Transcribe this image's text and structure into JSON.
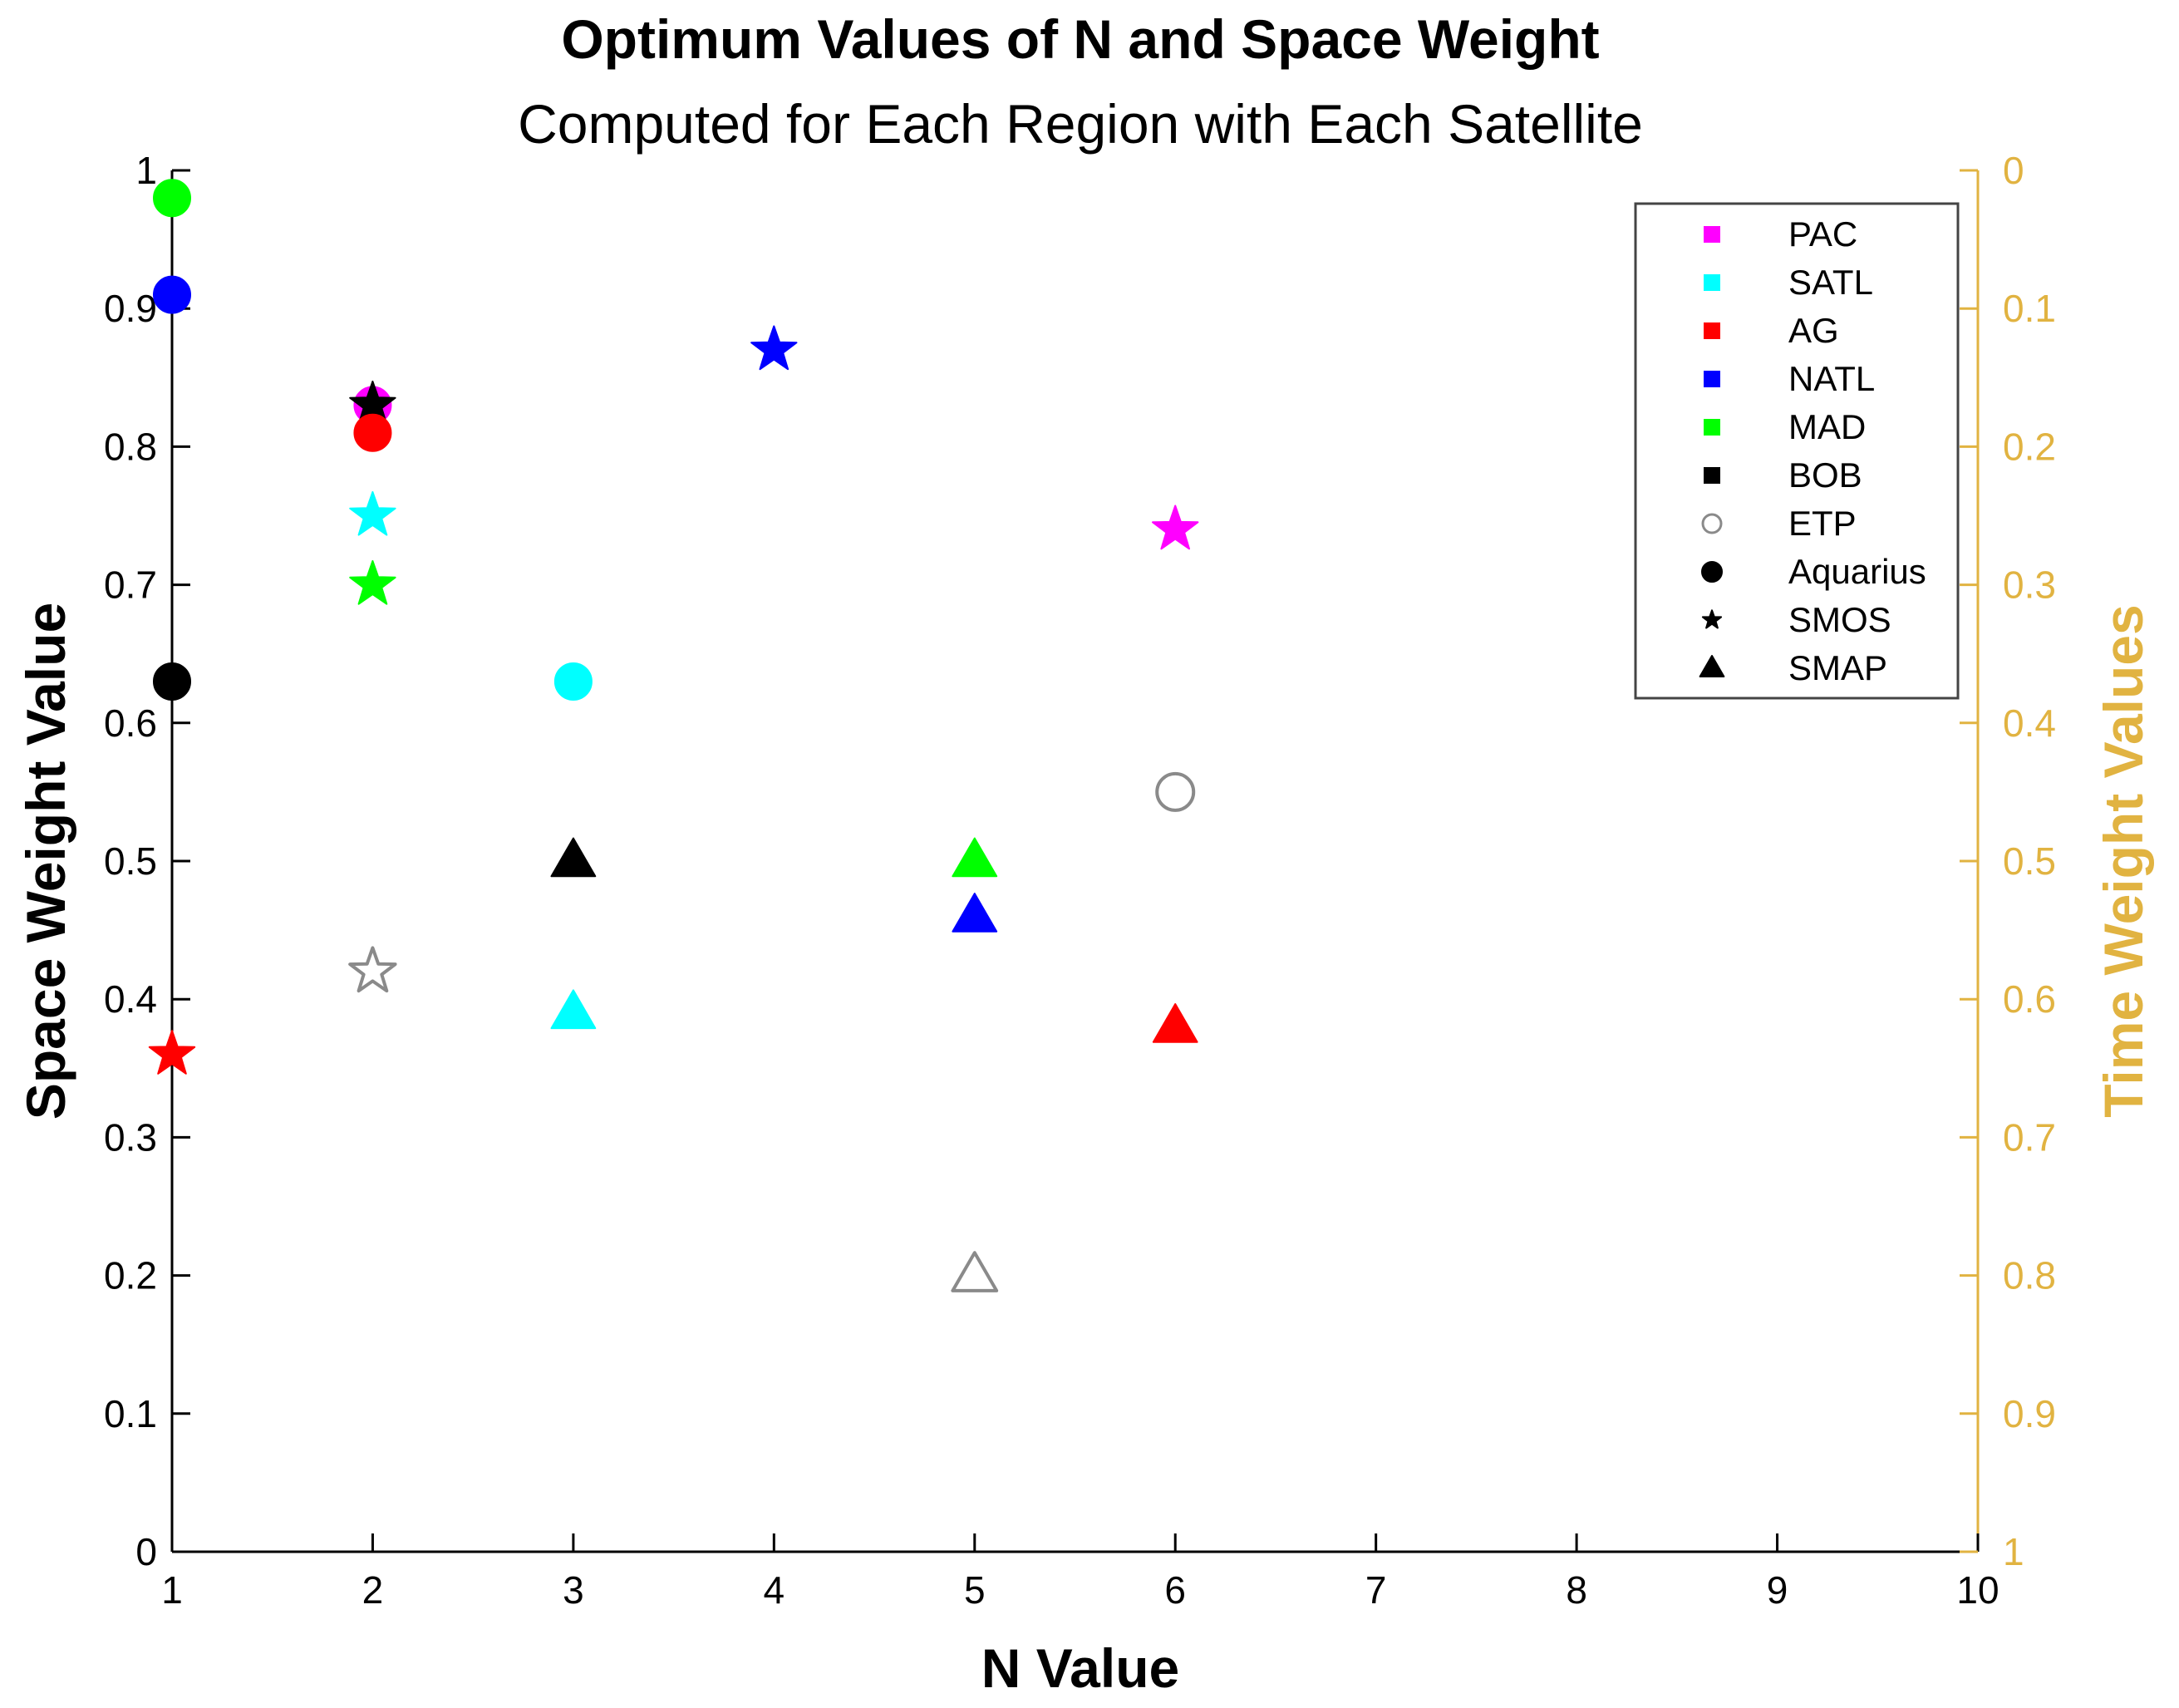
{
  "chart_data": {
    "type": "scatter",
    "title": "Optimum Values of N and Space Weight",
    "subtitle": "Computed for Each Region with Each Satellite",
    "xlabel": "N Value",
    "ylabel": "Space Weight Value",
    "ylabel_right": "Time Weight Values",
    "xlim": [
      1,
      10
    ],
    "ylim": [
      0,
      1
    ],
    "xticks": [
      "1",
      "2",
      "3",
      "4",
      "5",
      "6",
      "7",
      "8",
      "9",
      "10"
    ],
    "yticks": [
      "0",
      "0.1",
      "0.2",
      "0.3",
      "0.4",
      "0.5",
      "0.6",
      "0.7",
      "0.8",
      "0.9",
      "1"
    ],
    "yticks_right": [
      "0",
      "0.1",
      "0.2",
      "0.3",
      "0.4",
      "0.5",
      "0.6",
      "0.7",
      "0.8",
      "0.9",
      "1"
    ],
    "grid": false,
    "legend_position": "top-right",
    "right_axis_color": "#E1B341",
    "regions": [
      {
        "name": "PAC",
        "color": "#FF00FF"
      },
      {
        "name": "SATL",
        "color": "#00FFFF"
      },
      {
        "name": "AG",
        "color": "#FF0000"
      },
      {
        "name": "NATL",
        "color": "#0000FF"
      },
      {
        "name": "MAD",
        "color": "#00FF00"
      },
      {
        "name": "BOB",
        "color": "#000000"
      },
      {
        "name": "ETP",
        "color": "hollow"
      }
    ],
    "satellites": [
      {
        "name": "Aquarius",
        "marker": "circle"
      },
      {
        "name": "SMOS",
        "marker": "star"
      },
      {
        "name": "SMAP",
        "marker": "triangle"
      }
    ],
    "points": [
      {
        "region": "MAD",
        "satellite": "Aquarius",
        "x": 1,
        "y": 0.98
      },
      {
        "region": "NATL",
        "satellite": "Aquarius",
        "x": 1,
        "y": 0.91
      },
      {
        "region": "BOB",
        "satellite": "Aquarius",
        "x": 1,
        "y": 0.63
      },
      {
        "region": "AG",
        "satellite": "SMOS",
        "x": 1,
        "y": 0.36
      },
      {
        "region": "PAC",
        "satellite": "Aquarius",
        "x": 2,
        "y": 0.83
      },
      {
        "region": "BOB",
        "satellite": "SMOS",
        "x": 2,
        "y": 0.83
      },
      {
        "region": "AG",
        "satellite": "Aquarius",
        "x": 2,
        "y": 0.81
      },
      {
        "region": "SATL",
        "satellite": "SMOS",
        "x": 2,
        "y": 0.75
      },
      {
        "region": "MAD",
        "satellite": "SMOS",
        "x": 2,
        "y": 0.7
      },
      {
        "region": "ETP",
        "satellite": "SMOS",
        "x": 2,
        "y": 0.42
      },
      {
        "region": "SATL",
        "satellite": "Aquarius",
        "x": 3,
        "y": 0.63
      },
      {
        "region": "BOB",
        "satellite": "SMAP",
        "x": 3,
        "y": 0.5
      },
      {
        "region": "SATL",
        "satellite": "SMAP",
        "x": 3,
        "y": 0.39
      },
      {
        "region": "NATL",
        "satellite": "SMOS",
        "x": 4,
        "y": 0.87
      },
      {
        "region": "MAD",
        "satellite": "SMAP",
        "x": 5,
        "y": 0.5
      },
      {
        "region": "NATL",
        "satellite": "SMAP",
        "x": 5,
        "y": 0.46
      },
      {
        "region": "ETP",
        "satellite": "SMAP",
        "x": 5,
        "y": 0.2
      },
      {
        "region": "PAC",
        "satellite": "SMOS",
        "x": 6,
        "y": 0.74
      },
      {
        "region": "ETP",
        "satellite": "Aquarius",
        "x": 6,
        "y": 0.55
      },
      {
        "region": "AG",
        "satellite": "SMAP",
        "x": 6,
        "y": 0.38
      }
    ]
  }
}
